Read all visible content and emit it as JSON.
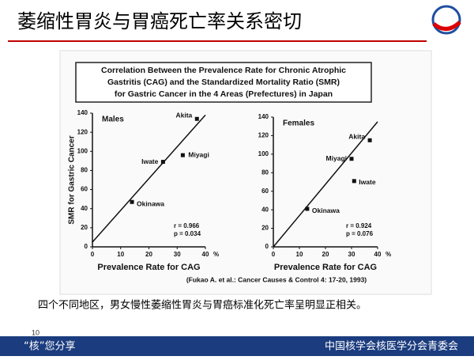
{
  "slide_title": "萎缩性胃炎与胃癌死亡率关系密切",
  "figure_title": [
    "Correlation Between the Prevalence Rate for Chronic Atrophic",
    "Gastritis (CAG) and the Standardized Mortality Ratio (SMR)",
    "for Gastric Cancer in the 4 Areas (Prefectures) in Japan"
  ],
  "citation": "(Fukao A. et al.: Cancer Causes & Control 4: 17-20, 1993)",
  "caption": "四个不同地区，男女慢性萎缩性胃炎与胃癌标准化死亡率呈明显正相关。",
  "footer": {
    "page": "10",
    "left": "“核”您分享",
    "right": "中国核学会核医学分会青委会"
  },
  "chart_data": [
    {
      "type": "scatter",
      "title": "Males",
      "x": [
        37,
        32,
        25,
        14
      ],
      "values": [
        134,
        96,
        89,
        47
      ],
      "point_labels": [
        "Akita",
        "Miyagi",
        "Iwate",
        "Okinawa"
      ],
      "color": "#111111",
      "xlim": [
        0,
        40
      ],
      "ylim": [
        0,
        140
      ],
      "xticks": [
        0,
        10,
        20,
        30,
        40
      ],
      "yticks": [
        0,
        20,
        40,
        60,
        80,
        100,
        120,
        140
      ],
      "x_unit": "%",
      "xlabel": "Prevalence Rate for CAG",
      "ylabel": "SMR for Gastric Cancer",
      "annotations": [
        "r = 0.966",
        "p = 0.034"
      ],
      "trend": {
        "x": [
          0,
          40
        ],
        "y": [
          5,
          138
        ]
      }
    },
    {
      "type": "scatter",
      "title": "Females",
      "x": [
        37,
        30,
        31,
        13
      ],
      "values": [
        115,
        95,
        71,
        41
      ],
      "point_labels": [
        "Akita",
        "Miyagi",
        "Iwate",
        "Okinawa"
      ],
      "color": "#111111",
      "xlim": [
        0,
        40
      ],
      "ylim": [
        0,
        140
      ],
      "xticks": [
        0,
        10,
        20,
        30,
        40
      ],
      "yticks": [
        0,
        20,
        40,
        60,
        80,
        100,
        120,
        140
      ],
      "x_unit": "%",
      "xlabel": "Prevalence Rate for CAG",
      "annotations": [
        "r = 0.924",
        "p = 0.076"
      ],
      "trend": {
        "x": [
          0,
          40
        ],
        "y": [
          0,
          135
        ]
      }
    }
  ]
}
